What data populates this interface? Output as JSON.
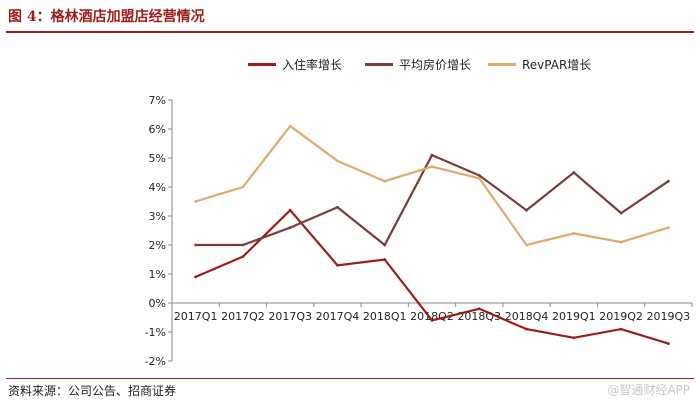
{
  "header": {
    "title": "图 4：格林酒店加盟店经营情况"
  },
  "footer": {
    "source": "资料来源：公司公告、招商证券",
    "watermark": "@智通财经APP"
  },
  "chart_data": {
    "type": "line",
    "title": "图 4：格林酒店加盟店经营情况",
    "categories": [
      "2017Q1",
      "2017Q2",
      "2017Q3",
      "2017Q4",
      "2018Q1",
      "2018Q2",
      "2018Q3",
      "2018Q4",
      "2019Q1",
      "2019Q2",
      "2019Q3"
    ],
    "series": [
      {
        "name": "入住率增长",
        "color": "#9c1c1c",
        "values": [
          0.9,
          1.6,
          3.2,
          1.3,
          1.5,
          -0.6,
          -0.2,
          -0.9,
          -1.2,
          -0.9,
          -1.4
        ]
      },
      {
        "name": "平均房价增长",
        "color": "#7a3b3b",
        "values": [
          2.0,
          2.0,
          2.6,
          3.3,
          2.0,
          5.1,
          4.4,
          3.2,
          4.5,
          3.1,
          4.2
        ]
      },
      {
        "name": "RevPAR增长",
        "color": "#e0aa6a",
        "values": [
          3.5,
          4.0,
          6.1,
          4.9,
          4.2,
          4.7,
          4.3,
          2.0,
          2.4,
          2.1,
          2.6
        ]
      }
    ],
    "y_ticks": [
      "-2%",
      "-1%",
      "0%",
      "1%",
      "2%",
      "3%",
      "4%",
      "5%",
      "6%",
      "7%"
    ],
    "ylim": [
      -2,
      7
    ],
    "legend_position": "top",
    "xlabel": "",
    "ylabel": "",
    "grid": false
  }
}
